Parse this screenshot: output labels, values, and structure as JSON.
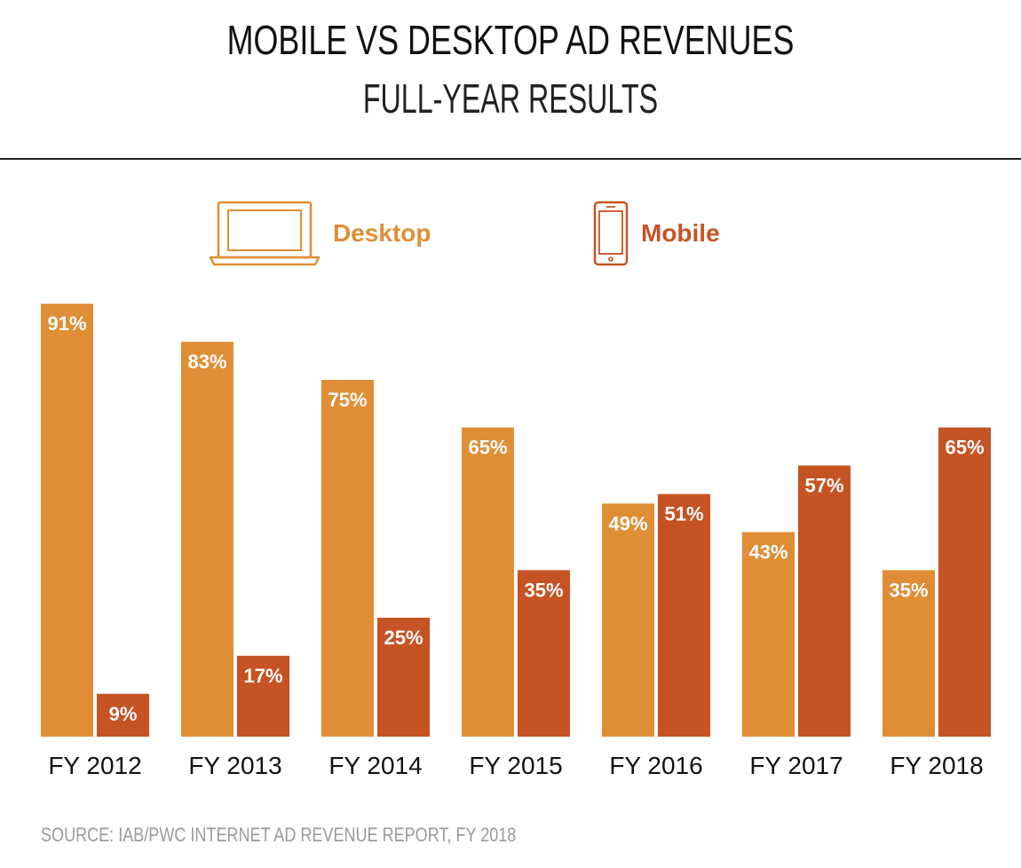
{
  "header": {
    "title": "MOBILE VS DESKTOP AD REVENUES",
    "subtitle": "FULL-YEAR RESULTS"
  },
  "legend": {
    "desktop_label": "Desktop",
    "mobile_label": "Mobile",
    "desktop_icon": "laptop-icon",
    "mobile_icon": "smartphone-icon"
  },
  "colors": {
    "desktop": "#DF8E36",
    "mobile": "#C65324"
  },
  "footer": {
    "source": "SOURCE: IAB/PWC INTERNET AD REVENUE REPORT, FY 2018"
  },
  "chart_data": {
    "type": "bar",
    "categories": [
      "FY 2012",
      "FY 2013",
      "FY 2014",
      "FY 2015",
      "FY 2016",
      "FY 2017",
      "FY 2018"
    ],
    "series": [
      {
        "name": "Desktop",
        "values": [
          91,
          83,
          75,
          65,
          49,
          43,
          35
        ]
      },
      {
        "name": "Mobile",
        "values": [
          9,
          17,
          25,
          35,
          51,
          57,
          65
        ]
      }
    ],
    "value_format": "%",
    "ylim": [
      0,
      100
    ],
    "grid": false,
    "legend_position": "top-center"
  }
}
